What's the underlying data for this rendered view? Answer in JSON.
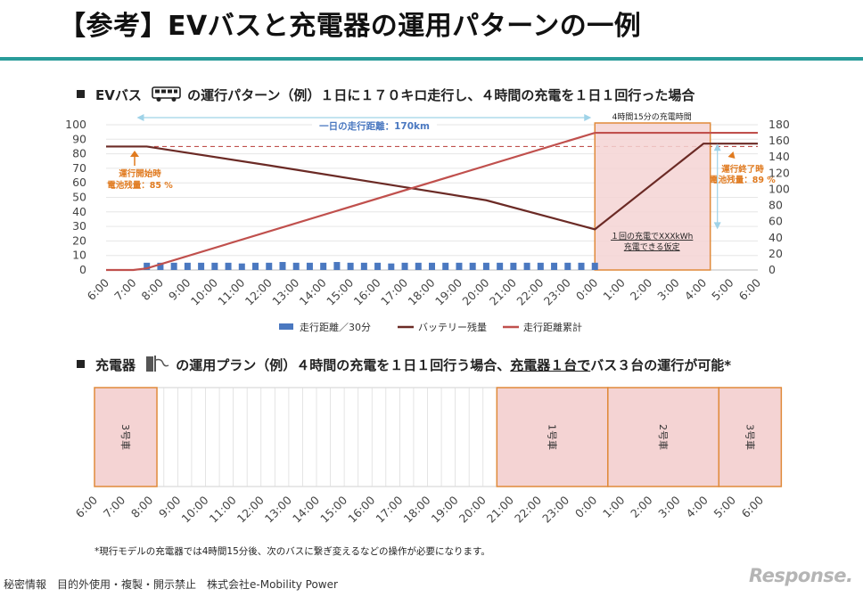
{
  "page": {
    "title": "【参考】EVバスと充電器の運用パターンの一例",
    "footnote": "*現行モデルの充電器では4時間15分後、次のバスに繋ぎ変えるなどの操作が必要になります。",
    "footer_left": "秘密情報　目的外使用・複製・開示禁止　株式会社e-Mobility Power",
    "brand": "Response."
  },
  "section1": {
    "label_pre": "EVバス",
    "icon": "bus-icon",
    "label_post": "の運行パターン（例）１日に１７０キロ走行し、４時間の充電を１日１回行った場合"
  },
  "section2": {
    "label_pre": "充電器",
    "icon": "charger-icon",
    "label_mid": "の運用プラン（例）４時間の充電を１日１回行う場合、",
    "label_underlined": "充電器１台で",
    "label_post": "バス３台の運行が可能*"
  },
  "chart_data": [
    {
      "type": "bar+line",
      "categories": [
        "6:00",
        "7:00",
        "8:00",
        "9:00",
        "10:00",
        "11:00",
        "12:00",
        "13:00",
        "14:00",
        "15:00",
        "16:00",
        "17:00",
        "18:00",
        "19:00",
        "20:00",
        "21:00",
        "22:00",
        "23:00",
        "0:00",
        "1:00",
        "2:00",
        "3:00",
        "4:00",
        "5:00",
        "6:00"
      ],
      "y_left": {
        "min": 0,
        "max": 100,
        "ticks": [
          0,
          10,
          20,
          30,
          40,
          50,
          60,
          70,
          80,
          90,
          100
        ]
      },
      "y_right": {
        "min": 0,
        "max": 180,
        "ticks": [
          0,
          20,
          40,
          60,
          80,
          100,
          120,
          140,
          160,
          180
        ]
      },
      "series": [
        {
          "name": "走行距離／30分",
          "type": "bar",
          "axis": "left",
          "color": "#4a78c0",
          "x": [
            7.5,
            8,
            8.5,
            9,
            9.5,
            10,
            10.5,
            11,
            11.5,
            12,
            12.5,
            13,
            13.5,
            14,
            14.5,
            15,
            15.5,
            16,
            16.5,
            17,
            17.5,
            18,
            18.5,
            19,
            19.5,
            20,
            20.5,
            21,
            21.5,
            22,
            22.5,
            23,
            23.5,
            24
          ],
          "values": [
            5,
            5,
            5,
            5,
            5,
            5,
            5,
            4.5,
            5,
            5,
            5.5,
            5,
            5,
            5,
            5.5,
            5,
            5,
            5,
            4.5,
            5,
            5,
            5,
            5,
            5,
            5,
            5,
            5,
            5,
            5,
            5,
            5,
            5,
            5,
            5
          ]
        },
        {
          "name": "バッテリー残量",
          "type": "line",
          "axis": "left",
          "color": "#6b2a25",
          "points": [
            [
              6,
              85
            ],
            [
              7.5,
              85
            ],
            [
              12,
              72
            ],
            [
              16,
              60
            ],
            [
              20,
              48
            ],
            [
              24,
              28
            ],
            [
              28,
              87
            ],
            [
              30,
              87
            ]
          ]
        },
        {
          "name": "走行距離累計",
          "type": "line",
          "axis": "right",
          "color": "#c0504d",
          "points": [
            [
              6,
              0
            ],
            [
              7,
              0
            ],
            [
              7.5,
              2
            ],
            [
              24,
              170
            ],
            [
              30,
              170
            ]
          ]
        }
      ],
      "reference_line": {
        "axis": "left",
        "value": 85,
        "color": "#c0504d"
      },
      "annotations": [
        {
          "text": "一日の走行距離：170km",
          "color": "#4a78c0"
        },
        {
          "text": "4時間15分の充電時間",
          "color": "#222"
        },
        {
          "text": "運行開始時\n電池残量：85 %",
          "color": "#e07a1f"
        },
        {
          "text": "運行終了時\n電池残量：89 %",
          "color": "#e07a1f"
        },
        {
          "text": "１回の充電でXXXkWh\n充電できる仮定",
          "color": "#222"
        }
      ],
      "legend": {
        "placement": "bottom"
      }
    },
    {
      "type": "gantt",
      "categories": [
        "6:00",
        "7:00",
        "8:00",
        "9:00",
        "10:00",
        "11:00",
        "12:00",
        "13:00",
        "14:00",
        "15:00",
        "16:00",
        "17:00",
        "18:00",
        "19:00",
        "20:00",
        "21:00",
        "22:00",
        "23:00",
        "0:00",
        "1:00",
        "2:00",
        "3:00",
        "4:00",
        "5:00",
        "6:00"
      ],
      "blocks": [
        {
          "label": "3号車",
          "start": 6,
          "end": 8.25
        },
        {
          "label": "1号車",
          "start": 20.5,
          "end": 24.5
        },
        {
          "label": "2号車",
          "start": 24.5,
          "end": 28.5
        },
        {
          "label": "3号車",
          "start": 28.5,
          "end": 30.75
        }
      ]
    }
  ]
}
